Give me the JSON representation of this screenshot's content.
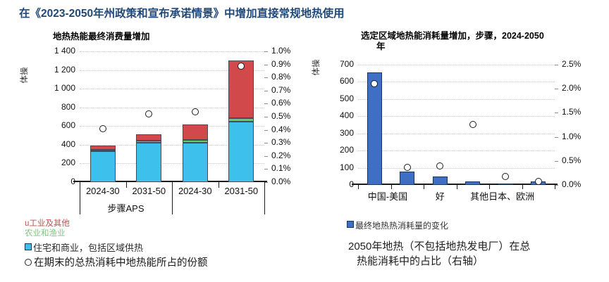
{
  "page_title": "在《2023-2050年州政策和宣布承诺情景》中增加直接常规地热使用",
  "chart_data": [
    {
      "type": "stacked-bar+scatter",
      "title": "地热热能最终消费量增加",
      "y_axis_label": "体操",
      "left_axis": {
        "max": 1400,
        "tick_labels": [
          "1 400",
          "1 200",
          "1 000",
          "800",
          "600",
          "400",
          "200",
          "0"
        ]
      },
      "right_axis": {
        "max_pct": 1.0,
        "tick_labels": [
          "1.0%",
          "0.9%",
          "0.8%",
          "0.7%",
          "0.6%",
          "0.5%",
          "0.4%",
          "0.3%",
          "0.2%",
          "0.1%",
          "0.0%"
        ]
      },
      "categories": [
        "2024-30",
        "2031-50",
        "2024-30",
        "2031-50"
      ],
      "group_labels": [
        "步骤APS",
        ""
      ],
      "series": [
        {
          "name": "住宅和商业，包括区域供热",
          "color": "#3EC0EC",
          "values": [
            330,
            420,
            425,
            650
          ]
        },
        {
          "name": "农业和渔业",
          "color": "#5DD168",
          "values": [
            20,
            25,
            25,
            35
          ]
        },
        {
          "name": "工业及其他",
          "color": "#D2494B",
          "values": [
            40,
            65,
            165,
            615
          ]
        }
      ],
      "share_series": {
        "name": "在期末的总热消耗中地热能所占的份额",
        "values_pct": [
          0.41,
          0.52,
          0.54,
          0.89
        ]
      },
      "legend": [
        {
          "marker": "u",
          "label": "工业及其他",
          "color": "#C0504D"
        },
        {
          "marker": "",
          "label": "农业和渔业",
          "color": "#7FC47F"
        },
        {
          "marker": "square",
          "label": "住宅和商业，包括区域供热",
          "color": "#2b2b2b"
        },
        {
          "marker": "circle",
          "label": "在期末的总热消耗中地热能所占的份额",
          "color": "#1a1a1a"
        }
      ]
    },
    {
      "type": "bar+scatter",
      "title_line1": "选定区域地热能消耗量增加，步骤，2024-2050",
      "title_line2": "年",
      "y_axis_label": "体操",
      "left_axis": {
        "max": 700,
        "tick_labels": [
          "700",
          "600",
          "500",
          "400",
          "300",
          "200",
          "100",
          "0"
        ]
      },
      "right_axis": {
        "max_pct": 2.5,
        "tick_labels": [
          "2.5%",
          "2.0%",
          "1.5%",
          "1.0%",
          "0.5%",
          "0.0%"
        ]
      },
      "bar_color": "#3F6FC4",
      "values": [
        655,
        80,
        50,
        22,
        6,
        20
      ],
      "share_values_pct": [
        2.1,
        0.37,
        0.4,
        1.26,
        0.17,
        0.07
      ],
      "x_labels": [
        {
          "text": "中国-美国",
          "at": 0.4
        },
        {
          "text": "好",
          "at": 2
        },
        {
          "text": "其他日本、欧洲",
          "at": 3.9
        }
      ],
      "legend": [
        {
          "marker": "square",
          "label": "最终地热热消耗量的变化",
          "color": "#333333"
        }
      ],
      "caption_line1": "2050年地热（不包括地热发电厂）在总",
      "caption_line2": "热能消耗中的占比（右轴）"
    }
  ]
}
